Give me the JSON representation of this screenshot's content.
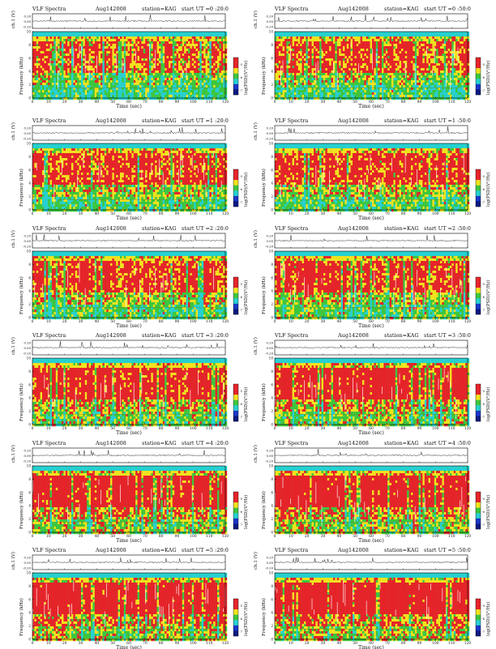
{
  "layout": {
    "columns": 2,
    "rows": 6
  },
  "common": {
    "header_left": "VLF Spectra",
    "date": "Aug142008",
    "station": "station=KAG",
    "ch_label": "ch.1 (V)",
    "ch_ticks": [
      "0.20",
      "0.00",
      "-0.20"
    ],
    "freq_label": "Frequency (kHz)",
    "freq_ticks": [
      "0",
      "2",
      "4",
      "6",
      "8",
      "10"
    ],
    "xlabel": "Time (sec)",
    "colorbar_label": "log(PSD)(V²/Hz)",
    "colorbar_ticks": [
      "-5",
      "-6",
      "-7"
    ],
    "colors": {
      "hot": "#e5242a",
      "yellow": "#f2e21e",
      "green": "#3ec63e",
      "cyan": "#27d0d0",
      "blue": "#1a36c8",
      "white": "#ffffff"
    }
  },
  "chart_data": [
    {
      "type": "heatmap",
      "start_label": "start  UT =0 :20:0",
      "x_ticks": [
        "0",
        "10",
        "20",
        "30",
        "40",
        "50",
        "60",
        "70",
        "80",
        "90",
        "100",
        "110",
        "120"
      ],
      "xlim": [
        0,
        120
      ],
      "ylim": [
        0,
        10
      ],
      "intensity": 0.55
    },
    {
      "type": "heatmap",
      "start_label": "start  UT =0 :50:0",
      "x_ticks": [
        "0",
        "10",
        "20",
        "30",
        "40",
        "50",
        "60",
        "70",
        "80",
        "90",
        "100",
        "110",
        "120"
      ],
      "xlim": [
        0,
        120
      ],
      "ylim": [
        0,
        10
      ],
      "intensity": 0.6
    },
    {
      "type": "heatmap",
      "start_label": "start  UT =1 :20:0",
      "x_ticks": [
        "0",
        "10",
        "20",
        "30",
        "40",
        "50",
        "60",
        "70",
        "80",
        "90",
        "100",
        "110",
        "120"
      ],
      "xlim": [
        0,
        120
      ],
      "ylim": [
        0,
        10
      ],
      "intensity": 0.62
    },
    {
      "type": "heatmap",
      "start_label": "start  UT =1 :50:0",
      "x_ticks": [
        "0",
        "10",
        "20",
        "30",
        "40",
        "50",
        "60",
        "70",
        "80",
        "90",
        "100",
        "110",
        "120"
      ],
      "xlim": [
        0,
        120
      ],
      "ylim": [
        0,
        10
      ],
      "intensity": 0.63
    },
    {
      "type": "heatmap",
      "start_label": "start  UT =2 :20:0",
      "x_ticks": [
        "0",
        "10",
        "20",
        "30",
        "40",
        "50",
        "60",
        "70",
        "80",
        "90",
        "100",
        "110",
        "120"
      ],
      "xlim": [
        0,
        120
      ],
      "ylim": [
        0,
        10
      ],
      "intensity": 0.64
    },
    {
      "type": "heatmap",
      "start_label": "start  UT =2 :50:0",
      "x_ticks": [
        "0",
        "10",
        "20",
        "30",
        "40",
        "50",
        "60",
        "70",
        "80",
        "90",
        "100",
        "110",
        "120"
      ],
      "xlim": [
        0,
        120
      ],
      "ylim": [
        0,
        10
      ],
      "intensity": 0.65
    },
    {
      "type": "heatmap",
      "start_label": "start  UT =3 :20:0",
      "x_ticks": [
        "0",
        "10",
        "20",
        "30",
        "40",
        "50",
        "60",
        "70",
        "80",
        "90",
        "100",
        "110",
        "120"
      ],
      "xlim": [
        0,
        120
      ],
      "ylim": [
        0,
        10
      ],
      "intensity": 0.7
    },
    {
      "type": "heatmap",
      "start_label": "start  UT =3 :50:0",
      "x_ticks": [
        "0",
        "10",
        "20",
        "30",
        "40",
        "50",
        "60",
        "70",
        "80",
        "90",
        "100",
        "110",
        "120"
      ],
      "xlim": [
        0,
        120
      ],
      "ylim": [
        0,
        10
      ],
      "intensity": 0.72
    },
    {
      "type": "heatmap",
      "start_label": "start  UT =4 :20:0",
      "x_ticks": [
        "0",
        "10",
        "20",
        "30",
        "40",
        "50",
        "60",
        "70",
        "80",
        "90",
        "100",
        "110",
        "120"
      ],
      "xlim": [
        0,
        120
      ],
      "ylim": [
        0,
        10
      ],
      "intensity": 0.75
    },
    {
      "type": "heatmap",
      "start_label": "start  UT =4 :50:0",
      "x_ticks": [
        "0",
        "10",
        "20",
        "30",
        "40",
        "50",
        "60",
        "70",
        "80",
        "90",
        "100",
        "110",
        "120"
      ],
      "xlim": [
        0,
        120
      ],
      "ylim": [
        0,
        10
      ],
      "intensity": 0.76
    },
    {
      "type": "heatmap",
      "start_label": "start  UT =5 :20:0",
      "x_ticks": [
        "0",
        "10",
        "20",
        "30",
        "40",
        "50",
        "60",
        "70",
        "80",
        "90",
        "100",
        "110",
        "120"
      ],
      "xlim": [
        0,
        120
      ],
      "ylim": [
        0,
        10
      ],
      "intensity": 0.78
    },
    {
      "type": "heatmap",
      "start_label": "start  UT =5 :50:0",
      "x_ticks": [
        "0",
        "10",
        "20",
        "30",
        "40",
        "50",
        "60",
        "70",
        "80",
        "90",
        "100",
        "110",
        "120"
      ],
      "xlim": [
        0,
        120
      ],
      "ylim": [
        0,
        10
      ],
      "intensity": 0.8
    }
  ]
}
